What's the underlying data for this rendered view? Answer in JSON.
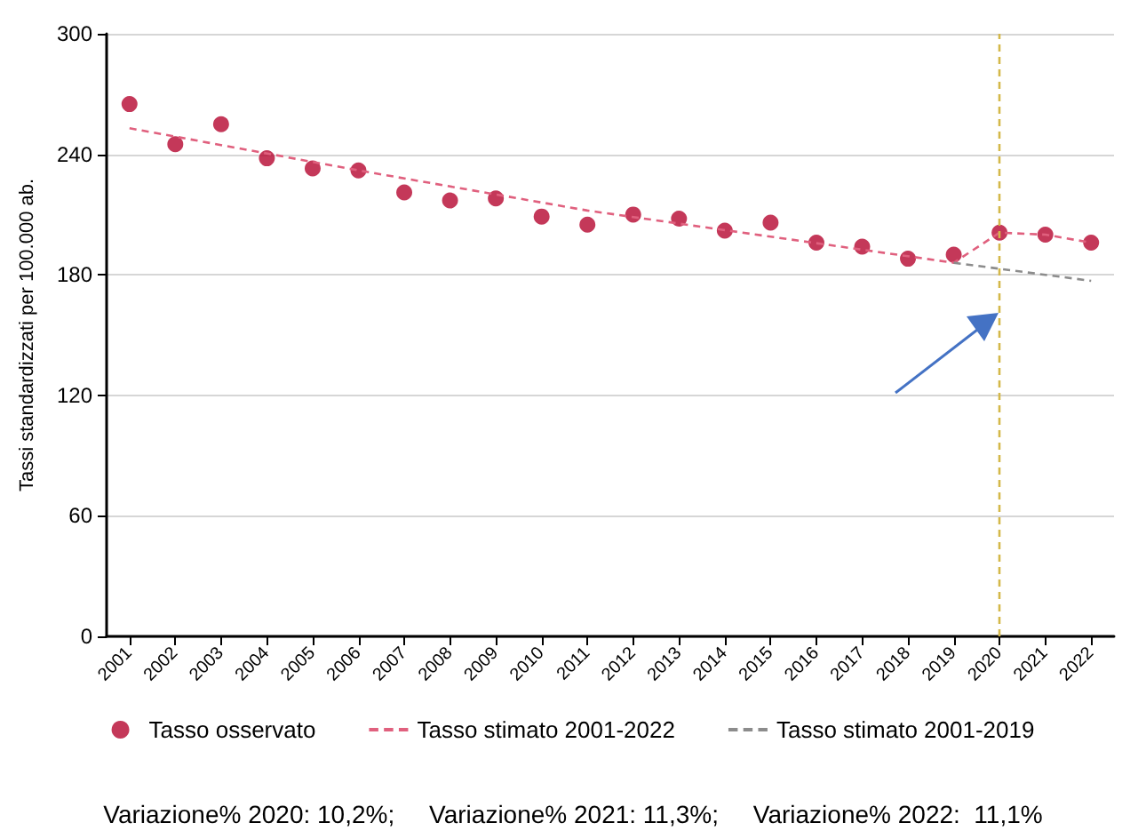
{
  "chart_data": {
    "type": "scatter",
    "ylabel": "Tassi standardizzati per 100.000 ab.",
    "categories": [
      "2001",
      "2002",
      "2003",
      "2004",
      "2005",
      "2006",
      "2007",
      "2008",
      "2009",
      "2010",
      "2011",
      "2012",
      "2013",
      "2014",
      "2015",
      "2016",
      "2017",
      "2018",
      "2019",
      "2020",
      "2021",
      "2022"
    ],
    "series": [
      {
        "name": "Tasso osservato",
        "marker": "circle",
        "color": "#b5062f",
        "values": [
          265,
          245,
          255,
          238,
          233,
          232,
          221,
          217,
          218,
          209,
          205,
          210,
          208,
          202,
          206,
          196,
          194,
          188,
          190,
          201,
          200,
          196
        ]
      },
      {
        "name": "Tasso stimato 2001-2022",
        "type": "line",
        "marker": "none",
        "line_style": "dashed",
        "color": "#e0607e",
        "values": [
          253,
          null,
          null,
          null,
          null,
          232,
          null,
          null,
          null,
          null,
          212,
          null,
          null,
          null,
          199,
          null,
          null,
          null,
          186,
          201,
          200,
          196
        ]
      },
      {
        "name": "Tasso stimato 2001-2019",
        "type": "line",
        "marker": "none",
        "line_style": "dashed",
        "color": "#8c8c8c",
        "values": [
          null,
          null,
          null,
          null,
          null,
          null,
          null,
          null,
          null,
          null,
          null,
          null,
          null,
          null,
          null,
          null,
          null,
          null,
          186,
          null,
          null,
          177
        ]
      }
    ],
    "ylim": [
      0,
      300
    ],
    "yticks": [
      0,
      60,
      120,
      180,
      240,
      300
    ],
    "grid": "y",
    "legend": "bottom",
    "ref_lines": [
      {
        "axis": "x",
        "value": "2020",
        "color": "#d4b84a",
        "line_style": "dashed"
      }
    ],
    "annotations": [
      "Variazione% 2020: 10,2%;     Variazione% 2021: 11,3%;     Variazione% 2022:  11,1%"
    ]
  }
}
